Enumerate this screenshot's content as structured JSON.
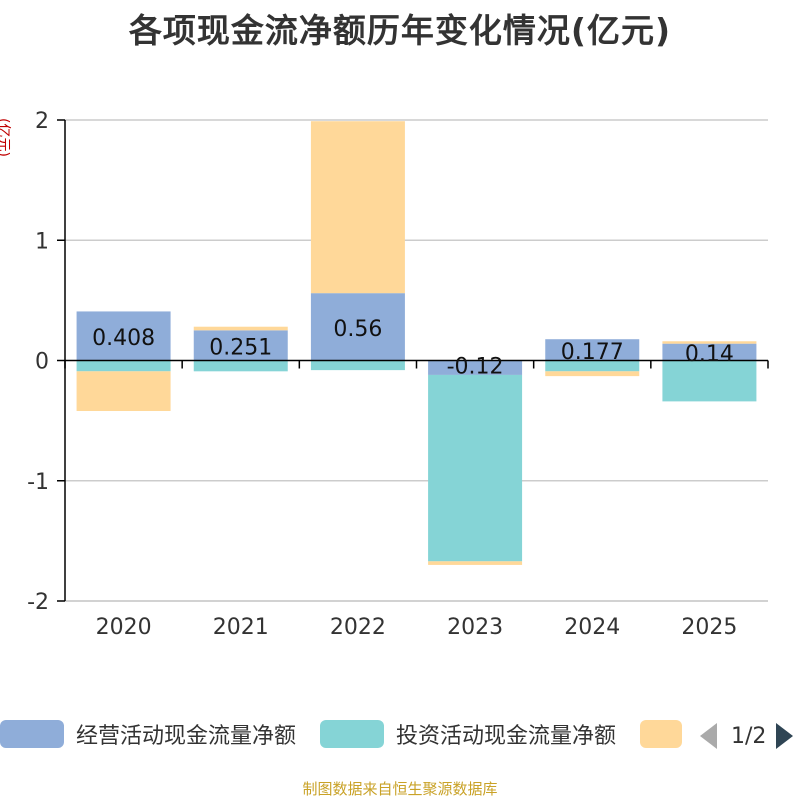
{
  "title": "各项现金流净额历年变化情况(亿元)",
  "unit_label": "(亿元)",
  "source": "制图数据来自恒生聚源数据库",
  "pager": {
    "text": "1/2"
  },
  "colors": {
    "operating": "#8fadd9",
    "investing": "#85d4d6",
    "financing": "#ffd899",
    "grid": "#cccccc",
    "axis": "#000000"
  },
  "chart_data": {
    "type": "bar",
    "stacked": true,
    "title": "各项现金流净额历年变化情况(亿元)",
    "ylabel": "(亿元)",
    "ylim": [
      -2,
      2
    ],
    "yticks": [
      -2,
      -1,
      0,
      1,
      2
    ],
    "grid": true,
    "legend_position": "bottom",
    "categories": [
      "2020",
      "2021",
      "2022",
      "2023",
      "2024",
      "2025"
    ],
    "series": [
      {
        "name": "经营活动现金流量净额",
        "color": "#8fadd9",
        "values": [
          0.408,
          0.251,
          0.56,
          -0.12,
          0.177,
          0.14
        ],
        "labels": [
          "0.408",
          "0.251",
          "0.56",
          "-0.12",
          "0.177",
          "0.14"
        ]
      },
      {
        "name": "投资活动现金流量净额",
        "color": "#85d4d6",
        "values": [
          -0.09,
          -0.09,
          -0.08,
          -1.55,
          -0.09,
          -0.34
        ]
      },
      {
        "name": "",
        "color": "#ffd899",
        "values": [
          -0.33,
          0.03,
          1.43,
          -0.03,
          -0.04,
          0.02
        ]
      }
    ]
  }
}
